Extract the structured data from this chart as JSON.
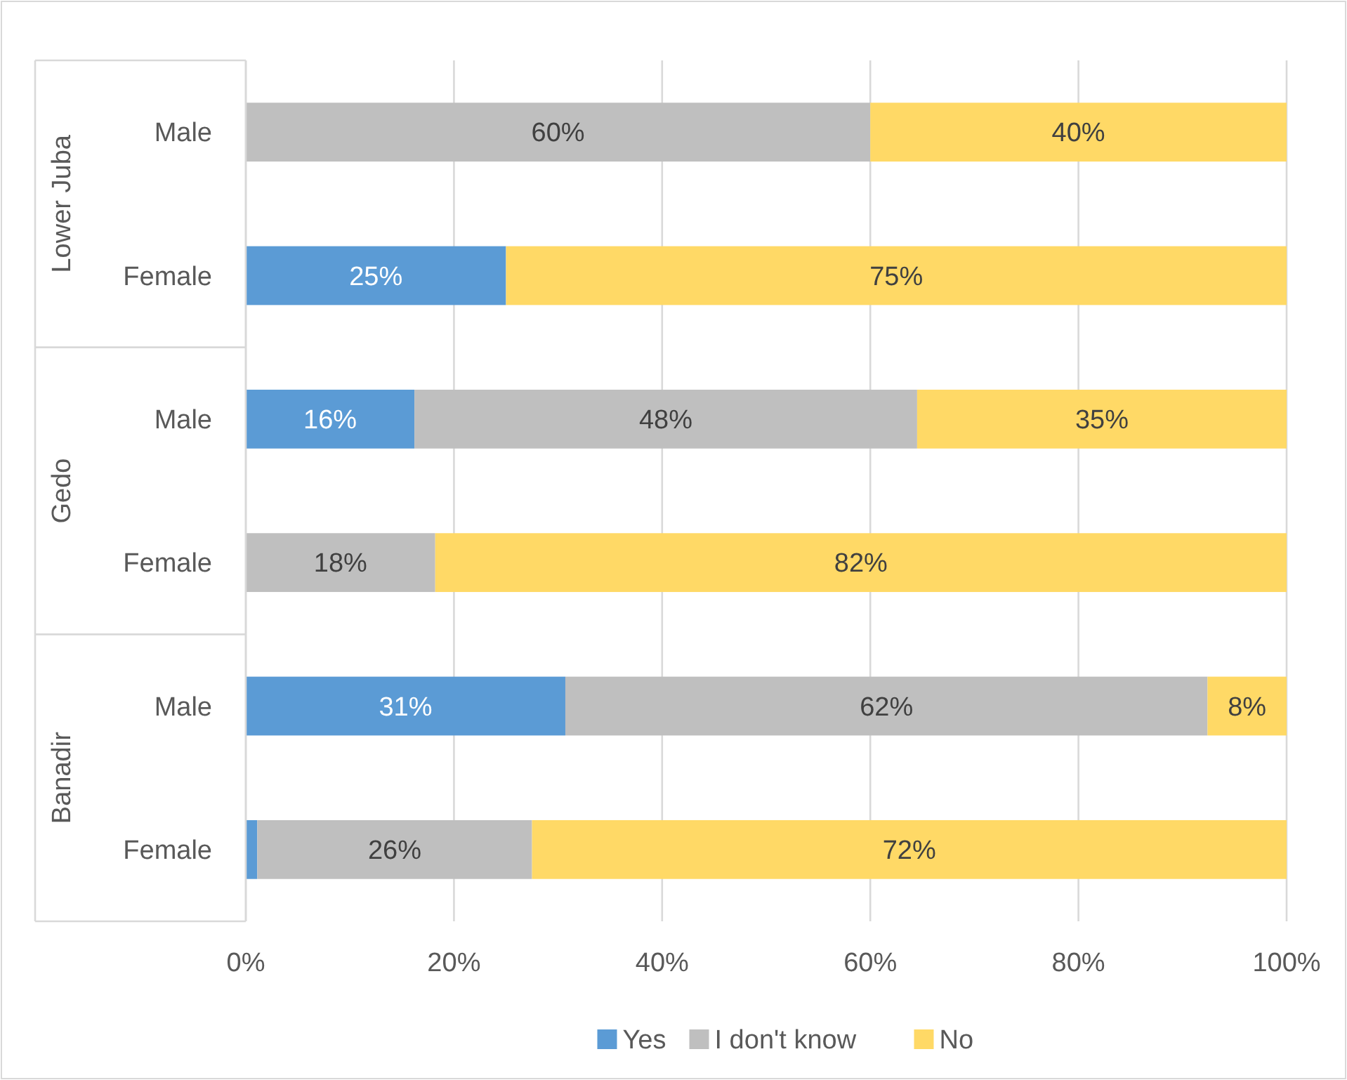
{
  "chart_data": {
    "type": "bar",
    "orientation": "horizontal",
    "stacked": true,
    "categories": [
      "Male",
      "Female",
      "Male",
      "Female",
      "Male",
      "Female"
    ],
    "annotations": [
      "Lower Juba",
      "Gedo",
      "Banadir"
    ],
    "series": [
      {
        "name": "Yes",
        "color": "#5b9bd5",
        "values": [
          0,
          25,
          16.2,
          0,
          30.7,
          1.1
        ],
        "value_labels": [
          null,
          "25%",
          "16%",
          null,
          "31%",
          null
        ]
      },
      {
        "name": "I don't know",
        "color": "#bfbfbf",
        "values": [
          60,
          0,
          48.3,
          18.2,
          61.7,
          26.4
        ],
        "value_labels": [
          "60%",
          null,
          "48%",
          "18%",
          "62%",
          "26%"
        ]
      },
      {
        "name": "No",
        "color": "#ffd966",
        "values": [
          40,
          75,
          35.5,
          81.8,
          7.6,
          72.5
        ],
        "value_labels": [
          "40%",
          "75%",
          "35%",
          "82%",
          "8%",
          "72%"
        ]
      }
    ],
    "xlim": [
      0,
      100
    ],
    "xticks": [
      {
        "value": 0,
        "label": "0%"
      },
      {
        "value": 20,
        "label": "20%"
      },
      {
        "value": 40,
        "label": "40%"
      },
      {
        "value": 60,
        "label": "60%"
      },
      {
        "value": 80,
        "label": "80%"
      },
      {
        "value": 100,
        "label": "100%"
      }
    ],
    "grid": "x",
    "legend": "bottom"
  }
}
